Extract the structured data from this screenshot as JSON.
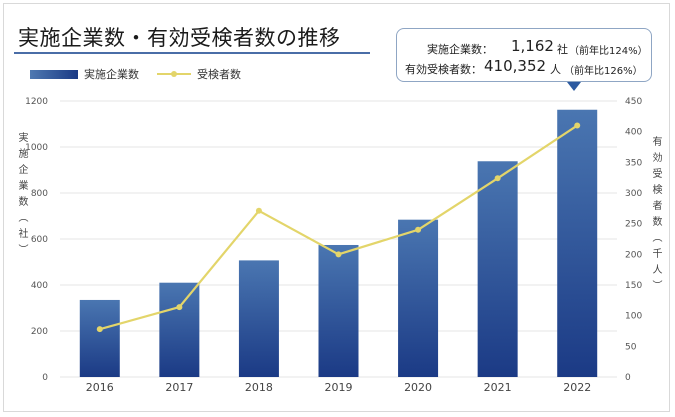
{
  "title": "実施企業数・有効受検者数の推移",
  "legend": {
    "bar_label": "実施企業数",
    "line_label": "受検者数"
  },
  "callout": {
    "row1": {
      "label": "実施企業数：",
      "value": "1,162",
      "unit": "社",
      "note": "（前年比124%）"
    },
    "row2": {
      "label": "有効受検者数：",
      "value": "410,352",
      "unit": "人",
      "note": "（前年比126%）"
    }
  },
  "colors": {
    "bar_top": "#4a76b1",
    "bar_bottom": "#1b3a85",
    "line": "#e3d56a",
    "grid": "#e6e6e6",
    "callout_arrow": "#2c5aa0"
  },
  "chart_data": {
    "type": "bar",
    "categories": [
      "2016",
      "2017",
      "2018",
      "2019",
      "2020",
      "2021",
      "2022"
    ],
    "series": [
      {
        "name": "実施企業数",
        "type": "bar",
        "axis": "left",
        "values": [
          335,
          410,
          507,
          574,
          684,
          938,
          1162
        ]
      },
      {
        "name": "受検者数",
        "type": "line",
        "axis": "right",
        "values": [
          78,
          114,
          271,
          200,
          240,
          324,
          410
        ]
      }
    ],
    "ylabel": "実施企業数（社）",
    "y2label": "有効受検者数（千人）",
    "ylim": [
      0,
      1200
    ],
    "y2lim": [
      0,
      450
    ],
    "yticks": [
      "0",
      "200",
      "400",
      "600",
      "800",
      "1000",
      "1200"
    ],
    "y2ticks": [
      "0",
      "50",
      "100",
      "150",
      "200",
      "250",
      "300",
      "350",
      "400",
      "450"
    ],
    "grid": true,
    "legend_position": "top-left"
  }
}
